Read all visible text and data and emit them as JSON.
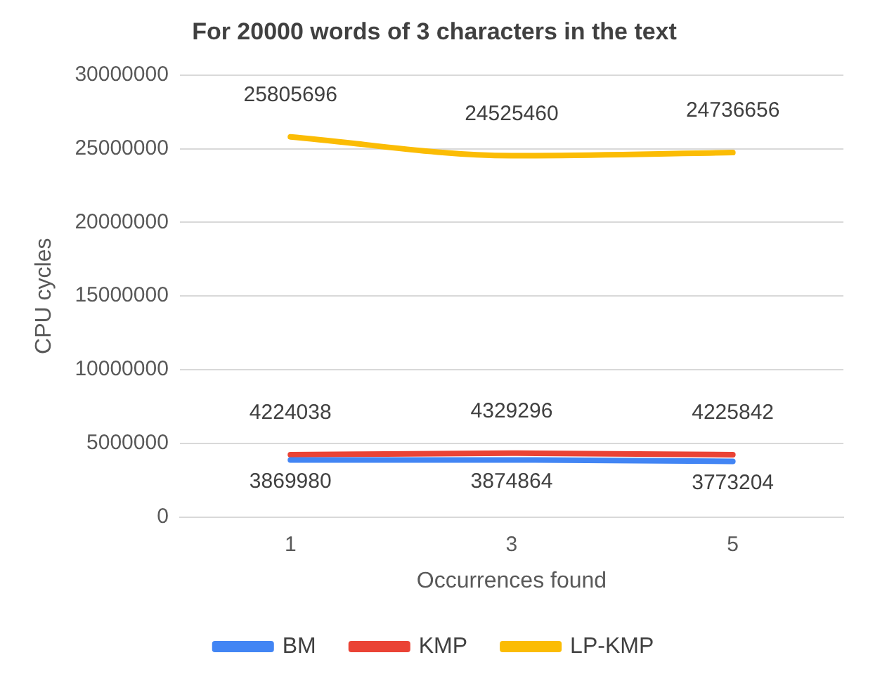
{
  "chart_data": {
    "type": "line",
    "title": "For 20000 words of 3 characters in the text",
    "xlabel": "Occurrences found",
    "ylabel": "CPU cycles",
    "categories": [
      "1",
      "3",
      "5"
    ],
    "series": [
      {
        "name": "BM",
        "color": "#4285f4",
        "values": [
          3869980,
          3874864,
          3773204
        ]
      },
      {
        "name": "KMP",
        "color": "#ea4335",
        "values": [
          4224038,
          4329296,
          4225842
        ]
      },
      {
        "name": "LP-KMP",
        "color": "#fbbc04",
        "values": [
          25805696,
          24525460,
          24736656
        ]
      }
    ],
    "ylim": [
      0,
      30000000
    ],
    "yticks": [
      0,
      5000000,
      10000000,
      15000000,
      20000000,
      25000000,
      30000000
    ],
    "grid": "y",
    "legend": "bottom",
    "data_labels": true,
    "marker": "none"
  }
}
